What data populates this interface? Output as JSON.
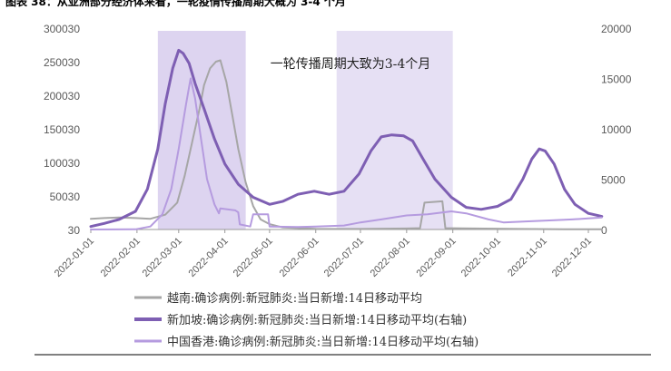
{
  "figure_title": "图表 38：从亚洲部分经济体来看，一轮疫情传播周期大概为 3-4 个月",
  "chart_data": {
    "type": "line",
    "title": "",
    "annotation": "一轮传播周期大致为3-4个月",
    "left_axis": {
      "ylim": [
        30,
        300030
      ],
      "ticks": [
        30,
        50030,
        100030,
        150030,
        200030,
        250030,
        300030
      ]
    },
    "right_axis": {
      "ylim": [
        0,
        20000
      ],
      "ticks": [
        0,
        5000,
        10000,
        15000,
        20000
      ]
    },
    "x_ticks": [
      "2022-01-01",
      "2022-02-01",
      "2022-03-01",
      "2022-04-01",
      "2022-05-01",
      "2022-06-01",
      "2022-07-01",
      "2022-08-01",
      "2022-09-01",
      "2022-10-01",
      "2022-11-01",
      "2022-12-01"
    ],
    "highlight_periods": [
      {
        "start": "2022-02-15",
        "end": "2022-04-15",
        "color": "#ddd4f0"
      },
      {
        "start": "2022-06-15",
        "end": "2022-09-01",
        "color": "#e6e0f4"
      }
    ],
    "grid": false,
    "legend_position": "bottom",
    "series": [
      {
        "name": "越南:确诊病例:新冠肺炎:当日新增:14日移动平均",
        "axis": "left",
        "color": "#a6a6a6",
        "width": 2,
        "points": [
          [
            "2022-01-01",
            16000
          ],
          [
            "2022-01-10",
            17000
          ],
          [
            "2022-01-20",
            18000
          ],
          [
            "2022-01-31",
            17000
          ],
          [
            "2022-02-10",
            16000
          ],
          [
            "2022-02-20",
            22000
          ],
          [
            "2022-02-28",
            40000
          ],
          [
            "2022-03-05",
            80000
          ],
          [
            "2022-03-10",
            130000
          ],
          [
            "2022-03-15",
            180000
          ],
          [
            "2022-03-18",
            215000
          ],
          [
            "2022-03-22",
            240000
          ],
          [
            "2022-03-26",
            250000
          ],
          [
            "2022-03-29",
            252000
          ],
          [
            "2022-04-02",
            220000
          ],
          [
            "2022-04-06",
            170000
          ],
          [
            "2022-04-10",
            120000
          ],
          [
            "2022-04-15",
            70000
          ],
          [
            "2022-04-20",
            35000
          ],
          [
            "2022-04-25",
            15000
          ],
          [
            "2022-05-01",
            8000
          ],
          [
            "2022-05-10",
            3000
          ],
          [
            "2022-06-01",
            1000
          ],
          [
            "2022-07-01",
            800
          ],
          [
            "2022-08-01",
            1500
          ],
          [
            "2022-08-10",
            2000
          ],
          [
            "2022-08-13",
            40000
          ],
          [
            "2022-08-25",
            42000
          ],
          [
            "2022-08-27",
            2000
          ],
          [
            "2022-09-15",
            1500
          ],
          [
            "2022-10-15",
            800
          ],
          [
            "2022-11-15",
            500
          ],
          [
            "2022-12-10",
            400
          ]
        ]
      },
      {
        "name": "新加坡:确诊病例:新冠肺炎:当日新增:14日移动平均(右轴)",
        "axis": "right",
        "color": "#7e5fb3",
        "width": 3,
        "points": [
          [
            "2022-01-01",
            300
          ],
          [
            "2022-01-10",
            600
          ],
          [
            "2022-01-20",
            1000
          ],
          [
            "2022-01-31",
            1800
          ],
          [
            "2022-02-08",
            4000
          ],
          [
            "2022-02-15",
            8000
          ],
          [
            "2022-02-20",
            12500
          ],
          [
            "2022-02-25",
            16000
          ],
          [
            "2022-03-01",
            17800
          ],
          [
            "2022-03-04",
            17500
          ],
          [
            "2022-03-08",
            16500
          ],
          [
            "2022-03-12",
            14500
          ],
          [
            "2022-03-18",
            12000
          ],
          [
            "2022-03-25",
            9000
          ],
          [
            "2022-04-01",
            6500
          ],
          [
            "2022-04-10",
            4500
          ],
          [
            "2022-04-20",
            3200
          ],
          [
            "2022-05-01",
            2500
          ],
          [
            "2022-05-10",
            2800
          ],
          [
            "2022-05-20",
            3500
          ],
          [
            "2022-05-31",
            3800
          ],
          [
            "2022-06-10",
            3500
          ],
          [
            "2022-06-20",
            3800
          ],
          [
            "2022-06-30",
            5500
          ],
          [
            "2022-07-08",
            7800
          ],
          [
            "2022-07-15",
            9200
          ],
          [
            "2022-07-22",
            9400
          ],
          [
            "2022-07-30",
            9300
          ],
          [
            "2022-08-05",
            8800
          ],
          [
            "2022-08-12",
            7000
          ],
          [
            "2022-08-20",
            5000
          ],
          [
            "2022-08-31",
            3200
          ],
          [
            "2022-09-10",
            2200
          ],
          [
            "2022-09-20",
            2000
          ],
          [
            "2022-10-01",
            2300
          ],
          [
            "2022-10-10",
            3000
          ],
          [
            "2022-10-18",
            5000
          ],
          [
            "2022-10-24",
            7000
          ],
          [
            "2022-10-29",
            8000
          ],
          [
            "2022-11-02",
            7800
          ],
          [
            "2022-11-08",
            6500
          ],
          [
            "2022-11-15",
            4000
          ],
          [
            "2022-11-22",
            2500
          ],
          [
            "2022-12-01",
            1600
          ],
          [
            "2022-12-10",
            1300
          ]
        ]
      },
      {
        "name": "中国香港:确诊病例:新冠肺炎:当日新增:14日移动平均(右轴)",
        "axis": "right",
        "color": "#b59bdf",
        "width": 2,
        "points": [
          [
            "2022-01-01",
            0
          ],
          [
            "2022-01-31",
            20
          ],
          [
            "2022-02-10",
            300
          ],
          [
            "2022-02-18",
            1500
          ],
          [
            "2022-02-24",
            4000
          ],
          [
            "2022-03-01",
            8000
          ],
          [
            "2022-03-06",
            12500
          ],
          [
            "2022-03-09",
            15000
          ],
          [
            "2022-03-12",
            13000
          ],
          [
            "2022-03-16",
            9000
          ],
          [
            "2022-03-20",
            5000
          ],
          [
            "2022-03-25",
            2500
          ],
          [
            "2022-03-28",
            1600
          ],
          [
            "2022-03-29",
            2100
          ],
          [
            "2022-04-08",
            1900
          ],
          [
            "2022-04-10",
            1700
          ],
          [
            "2022-04-11",
            500
          ],
          [
            "2022-04-18",
            300
          ],
          [
            "2022-04-20",
            1500
          ],
          [
            "2022-04-30",
            1500
          ],
          [
            "2022-05-01",
            300
          ],
          [
            "2022-05-20",
            250
          ],
          [
            "2022-06-01",
            300
          ],
          [
            "2022-06-20",
            400
          ],
          [
            "2022-07-01",
            700
          ],
          [
            "2022-07-15",
            1000
          ],
          [
            "2022-08-01",
            1400
          ],
          [
            "2022-08-15",
            1500
          ],
          [
            "2022-08-31",
            1800
          ],
          [
            "2022-09-10",
            1600
          ],
          [
            "2022-09-25",
            1000
          ],
          [
            "2022-10-05",
            700
          ],
          [
            "2022-10-20",
            800
          ],
          [
            "2022-11-05",
            900
          ],
          [
            "2022-11-20",
            1000
          ],
          [
            "2022-12-01",
            1100
          ],
          [
            "2022-12-10",
            1200
          ]
        ]
      }
    ]
  }
}
